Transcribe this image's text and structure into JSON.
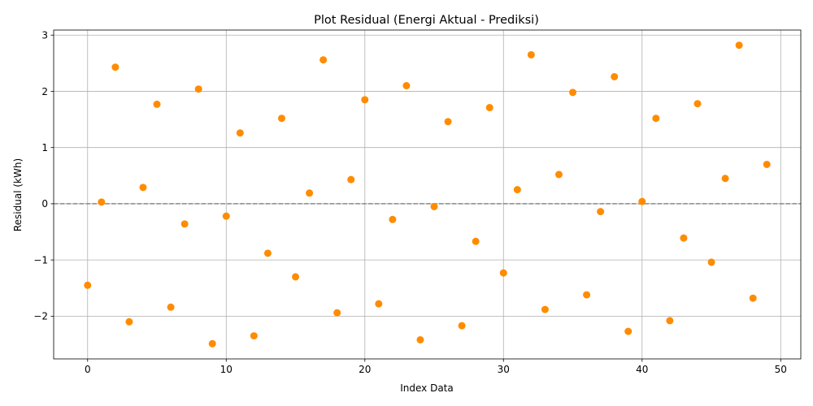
{
  "chart_data": {
    "type": "scatter",
    "title": "Plot Residual (Energi Aktual - Prediksi)",
    "xlabel": "Index Data",
    "ylabel": "Residual (kWh)",
    "xlim": [
      -2.45,
      51.45
    ],
    "ylim": [
      -2.76,
      3.09
    ],
    "xticks": [
      0,
      10,
      20,
      30,
      40,
      50
    ],
    "yticks": [
      -2,
      -1,
      0,
      1,
      2,
      3
    ],
    "ytick_labels": [
      "−2",
      "−1",
      "0",
      "1",
      "2",
      "3"
    ],
    "grid": true,
    "reference_line": {
      "y": 0,
      "style": "dashed",
      "color": "#888888"
    },
    "marker_color": "#ff8c00",
    "x": [
      0,
      1,
      2,
      3,
      4,
      5,
      6,
      7,
      8,
      9,
      10,
      11,
      12,
      13,
      14,
      15,
      16,
      17,
      18,
      19,
      20,
      21,
      22,
      23,
      24,
      25,
      26,
      27,
      28,
      29,
      30,
      31,
      32,
      33,
      34,
      35,
      36,
      37,
      38,
      39,
      40,
      41,
      42,
      43,
      44,
      45,
      46,
      47,
      48,
      49
    ],
    "y": [
      -1.45,
      0.03,
      2.43,
      -2.1,
      0.29,
      1.77,
      -1.84,
      -0.36,
      2.04,
      -2.49,
      -0.22,
      1.26,
      -2.35,
      -0.88,
      1.52,
      -1.3,
      0.19,
      2.56,
      -1.94,
      0.43,
      1.85,
      -1.78,
      -0.28,
      2.1,
      -2.42,
      -0.05,
      1.46,
      -2.17,
      -0.67,
      1.71,
      -1.23,
      0.25,
      2.65,
      -1.88,
      0.52,
      1.98,
      -1.62,
      -0.14,
      2.26,
      -2.27,
      0.04,
      1.52,
      -2.08,
      -0.61,
      1.78,
      -1.04,
      0.45,
      2.82,
      -1.68,
      0.7
    ]
  }
}
